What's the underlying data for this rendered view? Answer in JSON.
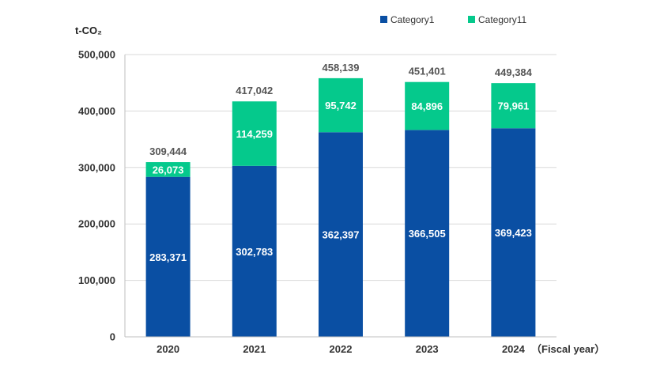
{
  "chart_data": {
    "type": "bar",
    "stacked": true,
    "categories": [
      "2020",
      "2021",
      "2022",
      "2023",
      "2024"
    ],
    "series": [
      {
        "name": "Category1",
        "color": "#0a4fa3",
        "values": [
          283371,
          302783,
          362397,
          366505,
          369423
        ]
      },
      {
        "name": "Category11",
        "color": "#05c98c",
        "values": [
          26073,
          114259,
          95742,
          84896,
          79961
        ]
      }
    ],
    "value_labels": [
      [
        "283,371",
        "302,783",
        "362,397",
        "366,505",
        "369,423"
      ],
      [
        "26,073",
        "114,259",
        "95,742",
        "84,896",
        "79,961"
      ]
    ],
    "totals": [
      "309,444",
      "417,042",
      "458,139",
      "451,401",
      "449,384"
    ],
    "ylabel": "t-CO₂",
    "xlabel": "（Fiscal year）",
    "ylim": [
      0,
      500000
    ],
    "yticks": [
      0,
      100000,
      200000,
      300000,
      400000,
      500000
    ],
    "ytick_labels": [
      "0",
      "100,000",
      "200,000",
      "300,000",
      "400,000",
      "500,000"
    ],
    "grid": true,
    "legend_position": "top-right"
  }
}
